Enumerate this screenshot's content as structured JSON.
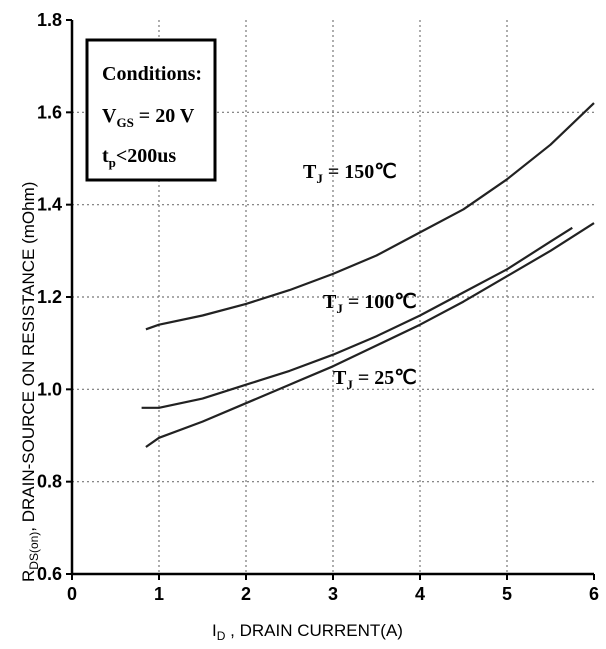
{
  "chart_data": {
    "type": "line",
    "xlabel_main": "I",
    "xlabel_sub": "D",
    "xlabel_rest": " , DRAIN CURRENT(A)",
    "ylabel_main": "R",
    "ylabel_sub": "DS(on)",
    "ylabel_rest": ", DRAIN-SOURCE ON RESISTANCE (mOhm)",
    "xlim": [
      0,
      6
    ],
    "ylim": [
      0.6,
      1.8
    ],
    "x_ticks": [
      0,
      1,
      2,
      3,
      4,
      5,
      6
    ],
    "y_ticks": [
      0.6,
      0.8,
      1.0,
      1.2,
      1.4,
      1.6,
      1.8
    ],
    "x_tick_labels": [
      "0",
      "1",
      "2",
      "3",
      "4",
      "5",
      "6"
    ],
    "y_tick_labels": [
      "0.6",
      "0.8",
      "1.0",
      "1.2",
      "1.4",
      "1.6",
      "1.8"
    ],
    "grid": true,
    "series": [
      {
        "name_main": "T",
        "name_sub": "J",
        "name_rest": " = 150℃",
        "x": [
          0.85,
          1.0,
          1.5,
          2.0,
          2.5,
          3.0,
          3.5,
          4.0,
          4.5,
          5.0,
          5.5,
          6.0
        ],
        "y": [
          1.13,
          1.14,
          1.16,
          1.185,
          1.215,
          1.25,
          1.29,
          1.34,
          1.39,
          1.455,
          1.53,
          1.62
        ]
      },
      {
        "name_main": "T",
        "name_sub": "J",
        "name_rest": " = 100℃",
        "x": [
          0.8,
          1.0,
          1.5,
          2.0,
          2.5,
          3.0,
          3.5,
          4.0,
          4.5,
          5.0,
          5.5,
          5.75
        ],
        "y": [
          0.96,
          0.96,
          0.98,
          1.01,
          1.04,
          1.075,
          1.115,
          1.16,
          1.21,
          1.26,
          1.32,
          1.35
        ]
      },
      {
        "name_main": "T",
        "name_sub": "J",
        "name_rest": " = 25℃",
        "x": [
          0.85,
          1.0,
          1.5,
          2.0,
          2.5,
          3.0,
          3.5,
          4.0,
          4.5,
          5.0,
          5.5,
          6.0
        ],
        "y": [
          0.875,
          0.895,
          0.93,
          0.97,
          1.01,
          1.05,
          1.095,
          1.14,
          1.19,
          1.245,
          1.3,
          1.36
        ]
      }
    ],
    "conditions": {
      "title": "Conditions:",
      "vgs_main": "V",
      "vgs_sub": "GS",
      "vgs_rest": " = 20 V",
      "tp_main": "t",
      "tp_sub": "p",
      "tp_rest": "<200us"
    }
  }
}
